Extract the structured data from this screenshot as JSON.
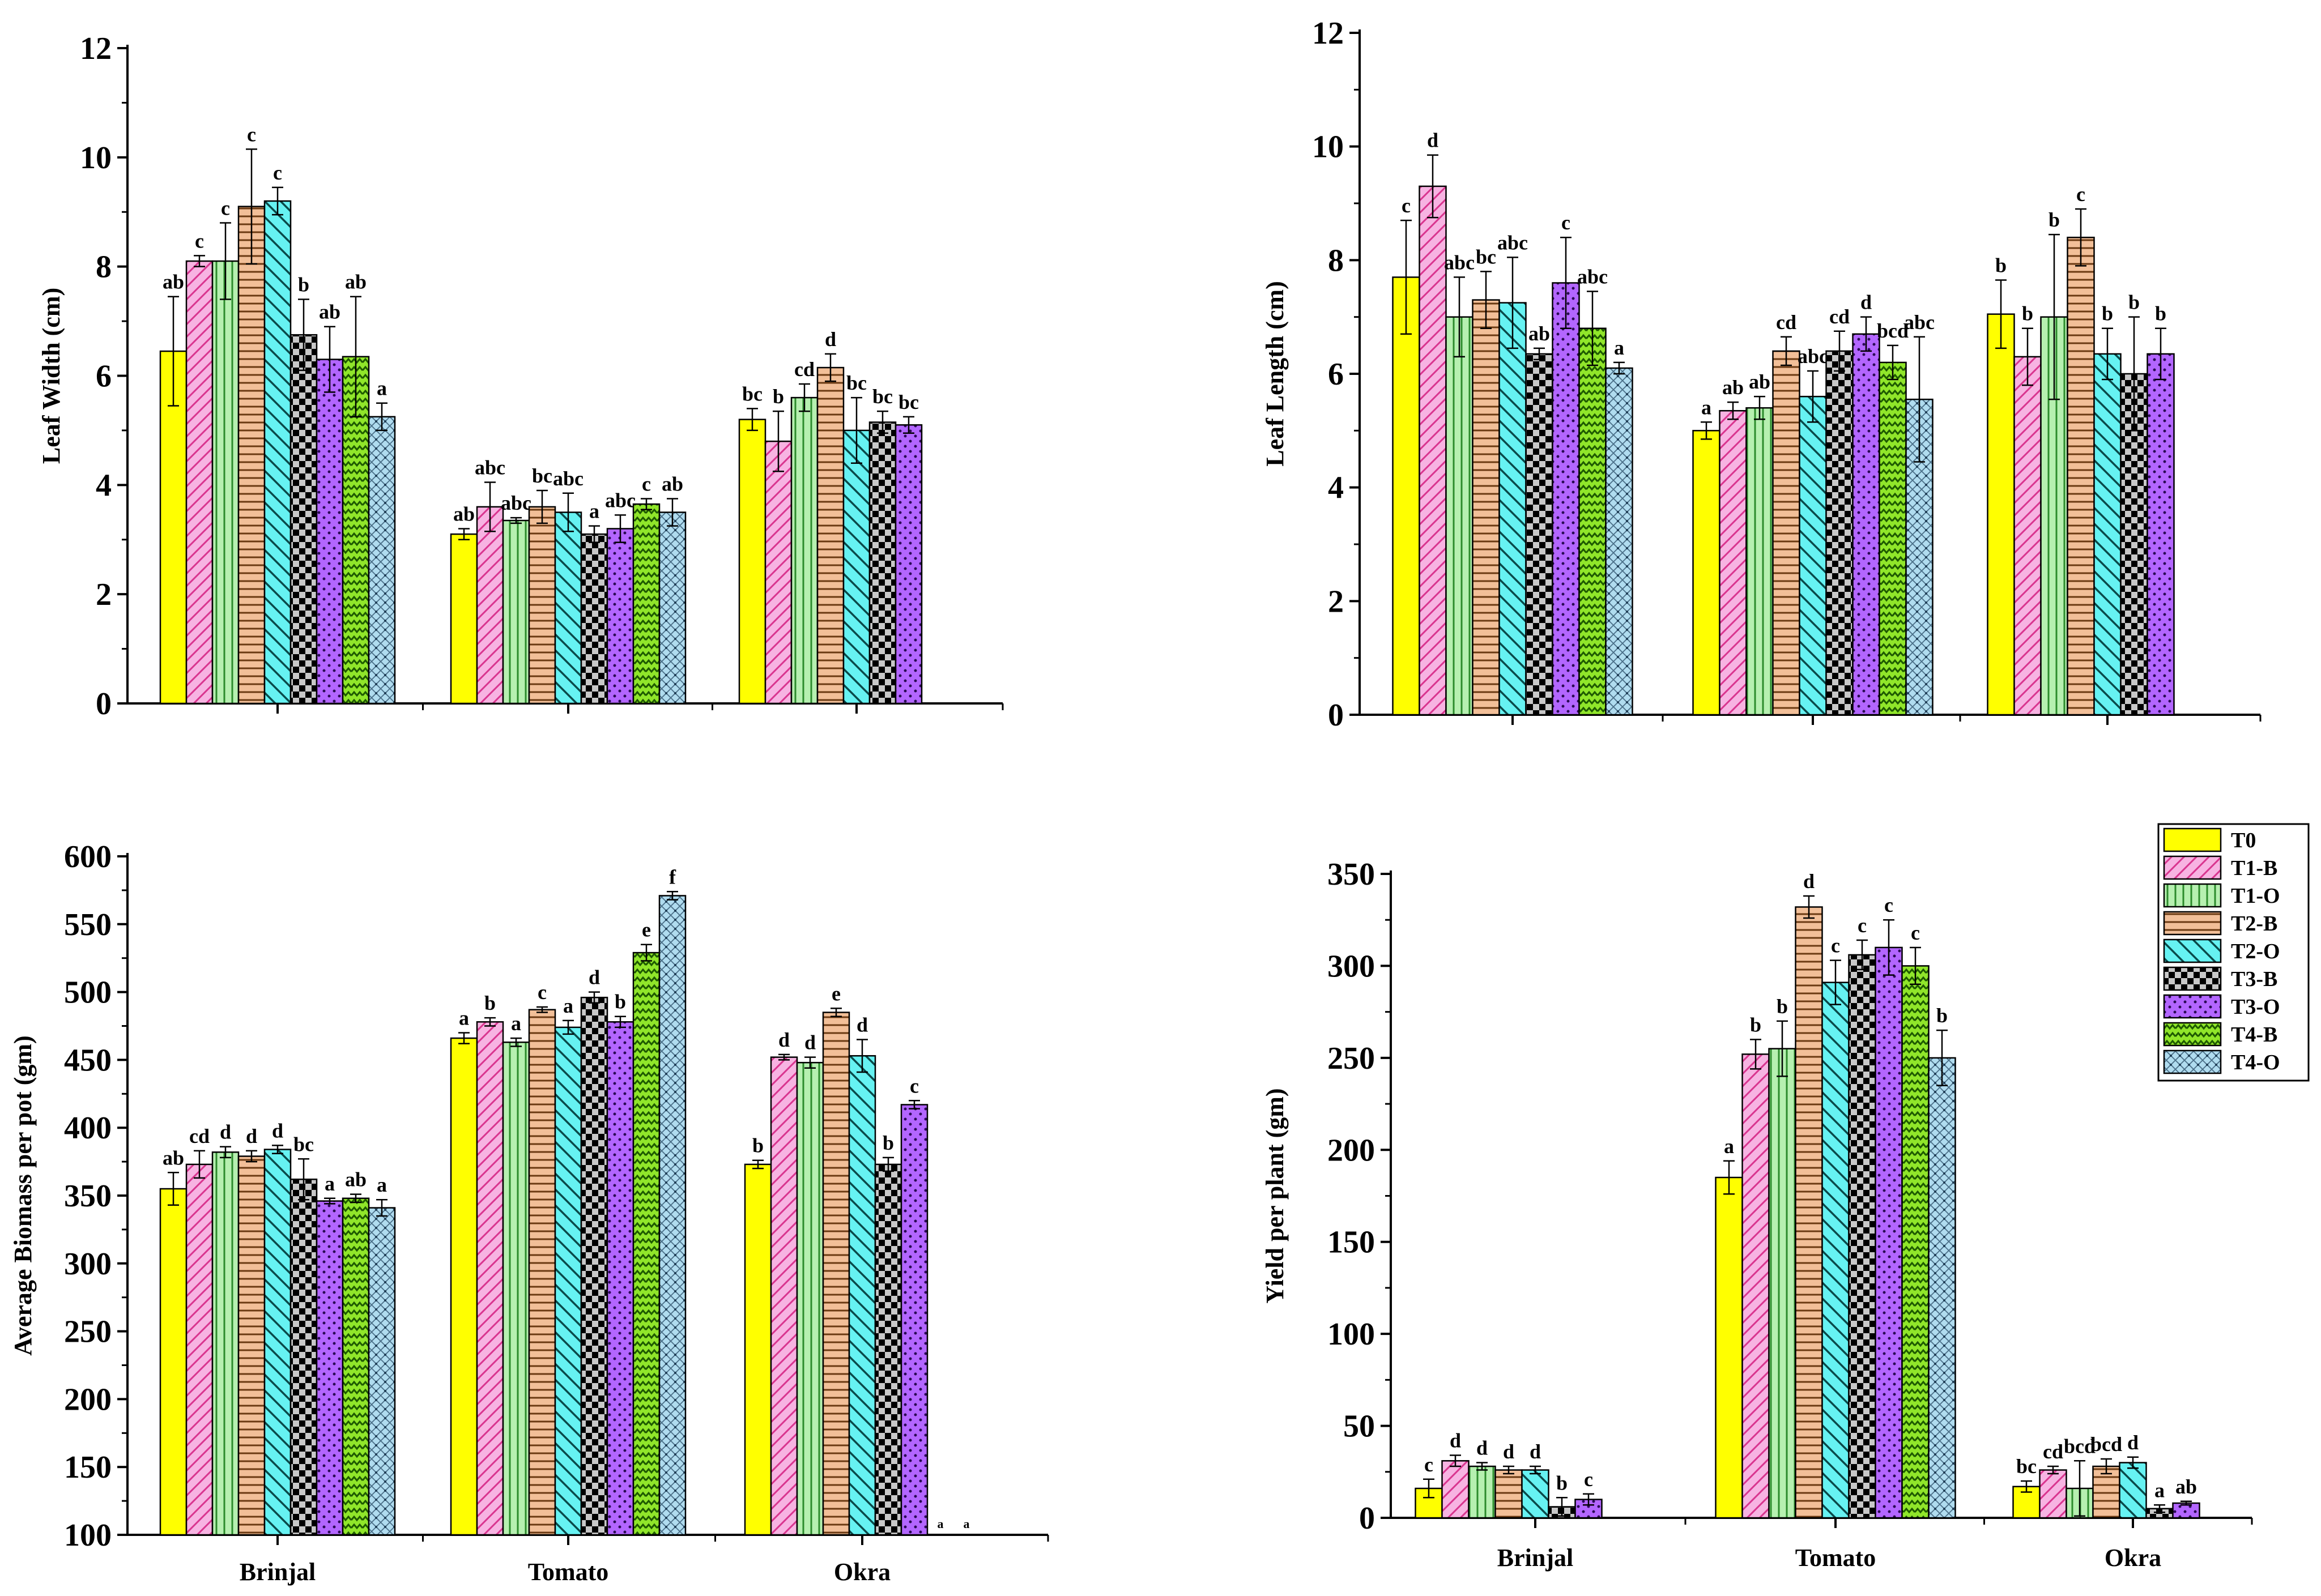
{
  "colors": {
    "T0": "#ffff00",
    "T1-B": "#f7b3e2",
    "T1-O": "#b6f0b0",
    "T2-B": "#f2bf98",
    "T2-O": "#66f2f2",
    "T3-B": "#c8c8c8",
    "T3-O": "#b366ff",
    "T4-B": "#90e62a",
    "T4-O": "#b0dcef"
  },
  "patterns": {
    "T0": "solid",
    "T1-B": "diagonal-hatch",
    "T1-O": "vertical-lines",
    "T2-B": "horizontal-lines",
    "T2-O": "diagonal-hatch-wide",
    "T3-B": "checker",
    "T3-O": "dots",
    "T4-B": "zigzag",
    "T4-O": "crosshatch-dots"
  },
  "legend": {
    "entries": [
      "T0",
      "T1-B",
      "T1-O",
      "T2-B",
      "T2-O",
      "T3-B",
      "T3-O",
      "T4-B",
      "T4-O"
    ]
  },
  "chart_data": [
    {
      "type": "bar",
      "panel": "top-left",
      "title": "",
      "xlabel": "",
      "ylabel": "Leaf Width (cm)",
      "ylim": [
        0,
        12
      ],
      "yticks": [
        0,
        2,
        4,
        6,
        8,
        10,
        12
      ],
      "categories": [
        "Brinjal",
        "Tomato",
        "Okra"
      ],
      "show_category_labels": false,
      "series": [
        {
          "name": "T0",
          "values": [
            6.45,
            3.1,
            5.2
          ],
          "errors": [
            1.0,
            0.1,
            0.2
          ],
          "letters": [
            "ab",
            "ab",
            "bc"
          ]
        },
        {
          "name": "T1-B",
          "values": [
            8.1,
            3.6,
            4.8
          ],
          "errors": [
            0.1,
            0.45,
            0.55
          ],
          "letters": [
            "c",
            "abc",
            "b"
          ]
        },
        {
          "name": "T1-O",
          "values": [
            8.1,
            3.35,
            5.6
          ],
          "errors": [
            0.7,
            0.05,
            0.25
          ],
          "letters": [
            "c",
            "abc",
            "cd"
          ]
        },
        {
          "name": "T2-B",
          "values": [
            9.1,
            3.6,
            6.15
          ],
          "errors": [
            1.05,
            0.3,
            0.25
          ],
          "letters": [
            "c",
            "bc",
            "d"
          ]
        },
        {
          "name": "T2-O",
          "values": [
            9.2,
            3.5,
            5.0
          ],
          "errors": [
            0.25,
            0.35,
            0.6
          ],
          "letters": [
            "c",
            "abc",
            "bc"
          ]
        },
        {
          "name": "T3-B",
          "values": [
            6.75,
            3.1,
            5.15
          ],
          "errors": [
            0.65,
            0.15,
            0.2
          ],
          "letters": [
            "b",
            "a",
            "bc"
          ]
        },
        {
          "name": "T3-O",
          "values": [
            6.3,
            3.2,
            5.1
          ],
          "errors": [
            0.6,
            0.25,
            0.15
          ],
          "letters": [
            "ab",
            "abc",
            "bc"
          ]
        },
        {
          "name": "T4-B",
          "values": [
            6.35,
            3.65,
            null
          ],
          "errors": [
            1.1,
            0.1,
            null
          ],
          "letters": [
            "ab",
            "c",
            null
          ]
        },
        {
          "name": "T4-O",
          "values": [
            5.25,
            3.5,
            null
          ],
          "errors": [
            0.25,
            0.25,
            null
          ],
          "letters": [
            "a",
            "ab",
            null
          ]
        }
      ]
    },
    {
      "type": "bar",
      "panel": "top-right",
      "title": "",
      "xlabel": "",
      "ylabel": "Leaf Length (cm)",
      "ylim": [
        0,
        12
      ],
      "yticks": [
        0,
        2,
        4,
        6,
        8,
        10,
        12
      ],
      "categories": [
        "Brinjal",
        "Tomato",
        "Okra"
      ],
      "show_category_labels": false,
      "series": [
        {
          "name": "T0",
          "values": [
            7.7,
            5.0,
            7.05
          ],
          "errors": [
            1.0,
            0.15,
            0.6
          ],
          "letters": [
            "c",
            "a",
            "b"
          ]
        },
        {
          "name": "T1-B",
          "values": [
            9.3,
            5.35,
            6.3
          ],
          "errors": [
            0.55,
            0.15,
            0.5
          ],
          "letters": [
            "d",
            "ab",
            "b"
          ]
        },
        {
          "name": "T1-O",
          "values": [
            7.0,
            5.4,
            7.0
          ],
          "errors": [
            0.7,
            0.2,
            1.45
          ],
          "letters": [
            "abc",
            "ab",
            "b"
          ]
        },
        {
          "name": "T2-B",
          "values": [
            7.3,
            6.4,
            8.4
          ],
          "errors": [
            0.5,
            0.25,
            0.5
          ],
          "letters": [
            "bc",
            "cd",
            "c"
          ]
        },
        {
          "name": "T2-O",
          "values": [
            7.25,
            5.6,
            6.35
          ],
          "errors": [
            0.8,
            0.45,
            0.45
          ],
          "letters": [
            "abc",
            "abc",
            "b"
          ]
        },
        {
          "name": "T3-B",
          "values": [
            6.35,
            6.4,
            6.0
          ],
          "errors": [
            0.1,
            0.35,
            1.0
          ],
          "letters": [
            "ab",
            "cd",
            "b"
          ]
        },
        {
          "name": "T3-O",
          "values": [
            7.6,
            6.7,
            6.35
          ],
          "errors": [
            0.8,
            0.3,
            0.45
          ],
          "letters": [
            "c",
            "d",
            "b"
          ]
        },
        {
          "name": "T4-B",
          "values": [
            6.8,
            6.2,
            null
          ],
          "errors": [
            0.65,
            0.3,
            null
          ],
          "letters": [
            "abc",
            "bcd",
            null
          ]
        },
        {
          "name": "T4-O",
          "values": [
            6.1,
            5.55,
            null
          ],
          "errors": [
            0.1,
            1.1,
            null
          ],
          "letters": [
            "a",
            "abc",
            null
          ]
        }
      ]
    },
    {
      "type": "bar",
      "panel": "bottom-left",
      "title": "",
      "xlabel": "",
      "ylabel": "Average Biomass per pot (gm)",
      "ylim": [
        100,
        600
      ],
      "yticks": [
        100,
        150,
        200,
        250,
        300,
        350,
        400,
        450,
        500,
        550,
        600
      ],
      "categories": [
        "Brinjal",
        "Tomato",
        "Okra"
      ],
      "show_category_labels": true,
      "series": [
        {
          "name": "T0",
          "values": [
            355,
            466,
            373
          ],
          "errors": [
            12,
            4,
            3
          ],
          "letters": [
            "ab",
            "a",
            "b"
          ]
        },
        {
          "name": "T1-B",
          "values": [
            373,
            478,
            452
          ],
          "errors": [
            10,
            3,
            2
          ],
          "letters": [
            "cd",
            "b",
            "d"
          ]
        },
        {
          "name": "T1-O",
          "values": [
            382,
            463,
            448
          ],
          "errors": [
            4,
            3,
            4
          ],
          "letters": [
            "d",
            "a",
            "d"
          ]
        },
        {
          "name": "T2-B",
          "values": [
            379,
            487,
            485
          ],
          "errors": [
            4,
            2,
            3
          ],
          "letters": [
            "d",
            "c",
            "e"
          ]
        },
        {
          "name": "T2-O",
          "values": [
            384,
            474,
            453
          ],
          "errors": [
            3,
            5,
            12
          ],
          "letters": [
            "d",
            "a",
            "d"
          ]
        },
        {
          "name": "T3-B",
          "values": [
            362,
            496,
            373
          ],
          "errors": [
            15,
            4,
            5
          ],
          "letters": [
            "bc",
            "d",
            "b"
          ]
        },
        {
          "name": "T3-O",
          "values": [
            346,
            478,
            417
          ],
          "errors": [
            2,
            4,
            3
          ],
          "letters": [
            "a",
            "b",
            "c"
          ]
        },
        {
          "name": "T4-B",
          "values": [
            348,
            529,
            null
          ],
          "errors": [
            3,
            6,
            null
          ],
          "letters": [
            "ab",
            "e",
            "a"
          ]
        },
        {
          "name": "T4-O",
          "values": [
            341,
            571,
            null
          ],
          "errors": [
            6,
            3,
            null
          ],
          "letters": [
            "a",
            "f",
            "a"
          ]
        }
      ]
    },
    {
      "type": "bar",
      "panel": "bottom-right",
      "title": "",
      "xlabel": "",
      "ylabel": "Yield per plant (gm)",
      "ylim": [
        0,
        350
      ],
      "yticks": [
        0,
        50,
        100,
        150,
        200,
        250,
        300,
        350
      ],
      "categories": [
        "Brinjal",
        "Tomato",
        "Okra"
      ],
      "show_category_labels": true,
      "legend_position": "top-right",
      "series": [
        {
          "name": "T0",
          "values": [
            16,
            185,
            17
          ],
          "errors": [
            5,
            9,
            3
          ],
          "letters": [
            "c",
            "a",
            "bc"
          ]
        },
        {
          "name": "T1-B",
          "values": [
            31,
            252,
            26
          ],
          "errors": [
            3,
            8,
            2
          ],
          "letters": [
            "d",
            "b",
            "cd"
          ]
        },
        {
          "name": "T1-O",
          "values": [
            28,
            255,
            16
          ],
          "errors": [
            2,
            15,
            15
          ],
          "letters": [
            "d",
            "b",
            "bcd"
          ]
        },
        {
          "name": "T2-B",
          "values": [
            26,
            332,
            28
          ],
          "errors": [
            2,
            6,
            4
          ],
          "letters": [
            "d",
            "d",
            "bcd"
          ]
        },
        {
          "name": "T2-O",
          "values": [
            26,
            291,
            30
          ],
          "errors": [
            2,
            12,
            3
          ],
          "letters": [
            "d",
            "c",
            "d"
          ]
        },
        {
          "name": "T3-B",
          "values": [
            6,
            306,
            5
          ],
          "errors": [
            5,
            8,
            2
          ],
          "letters": [
            "b",
            "c",
            "a"
          ]
        },
        {
          "name": "T3-O",
          "values": [
            10,
            310,
            8
          ],
          "errors": [
            3,
            15,
            1
          ],
          "letters": [
            "c",
            "c",
            "ab"
          ]
        },
        {
          "name": "T4-B",
          "values": [
            null,
            300,
            null
          ],
          "errors": [
            null,
            10,
            null
          ],
          "letters": [
            null,
            "c",
            null
          ]
        },
        {
          "name": "T4-O",
          "values": [
            null,
            250,
            null
          ],
          "errors": [
            null,
            15,
            null
          ],
          "letters": [
            null,
            "b",
            null
          ]
        }
      ]
    }
  ]
}
